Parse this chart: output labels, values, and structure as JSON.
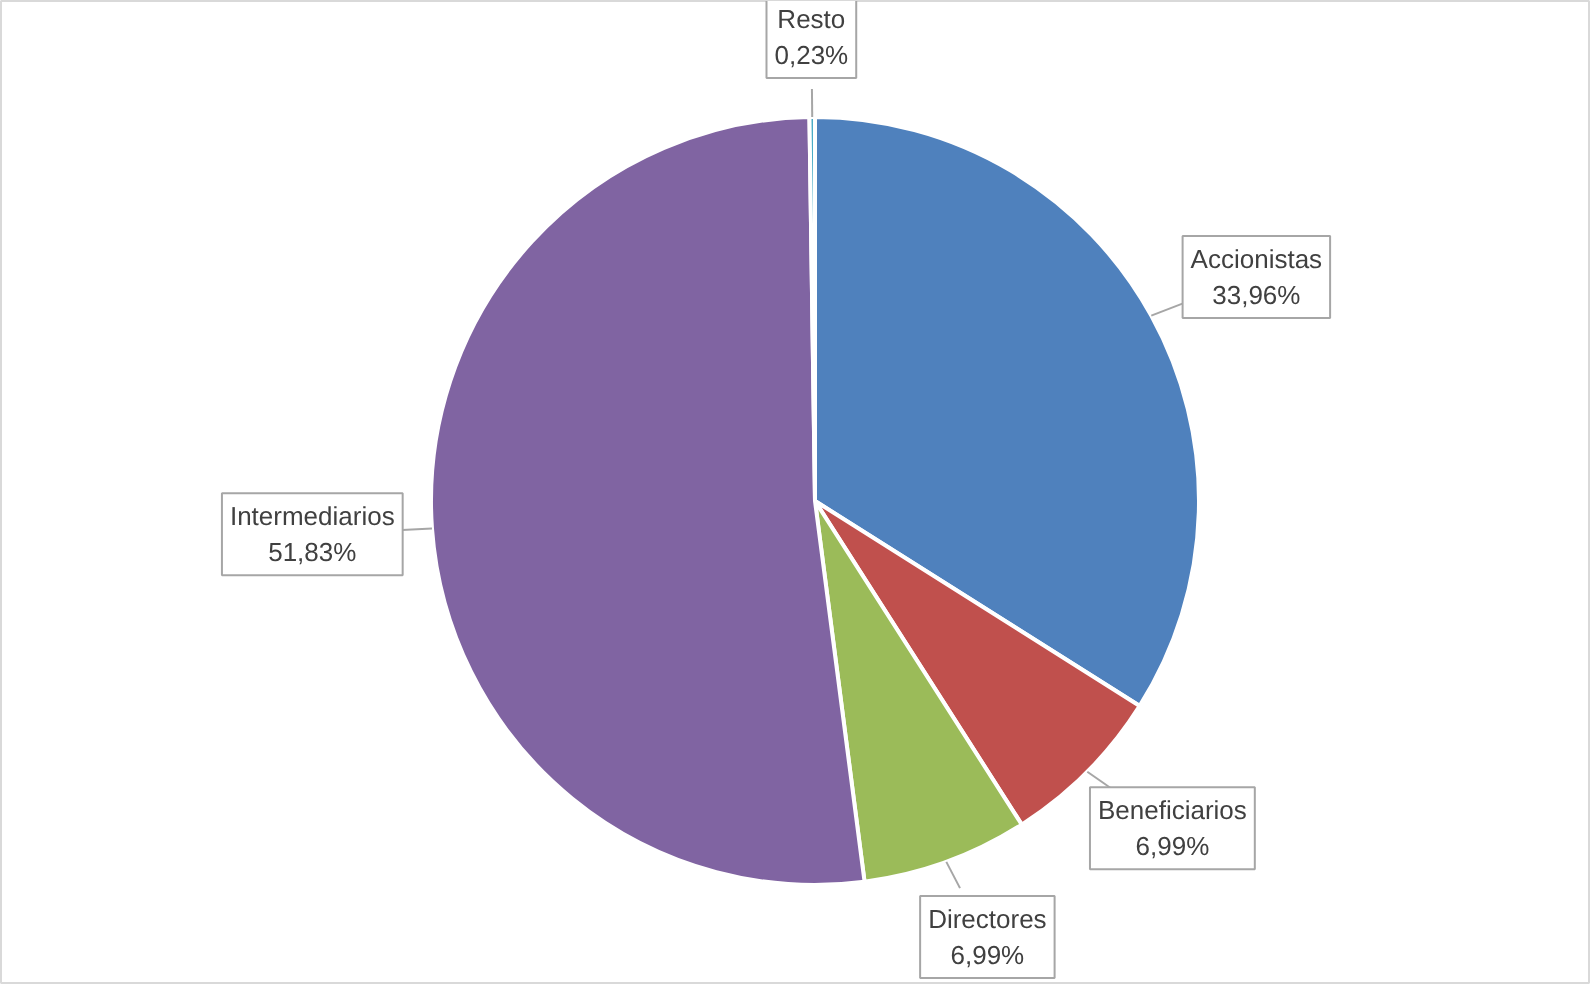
{
  "chart_data": {
    "type": "pie",
    "categories": [
      "Accionistas",
      "Beneficiarios",
      "Directores",
      "Intermediarios",
      "Resto"
    ],
    "values": [
      33.96,
      6.99,
      6.99,
      51.83,
      0.23
    ],
    "colors": [
      "#4f81bd",
      "#c0504d",
      "#9bbb59",
      "#8064a2",
      "#4bacc6"
    ],
    "value_labels": [
      "33,96%",
      "6,99%",
      "6,99%",
      "51,83%",
      "0,23%"
    ]
  }
}
